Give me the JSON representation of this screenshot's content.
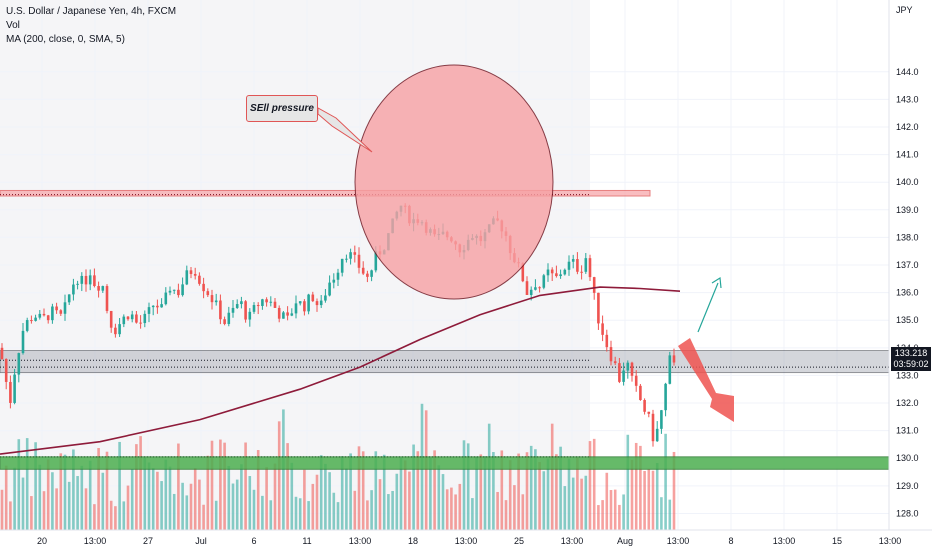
{
  "legend": {
    "symbol": "U.S. Dollar / Japanese Yen, 4h, FXCM",
    "vol": "Vol",
    "ma": "MA (200, close, 0, SMA, 5)"
  },
  "price_axis": {
    "currency": "JPY",
    "last_price": "133.218",
    "countdown": "03:59:02"
  },
  "annotations": {
    "callout": "SEll pressure"
  },
  "colors": {
    "up": "#26a69a",
    "down": "#ef5350",
    "ma": "#8e1b3a",
    "resistance": "#f7a8ab",
    "support": "#4caf50",
    "range": "#b2b5be",
    "circle": "#f7a1a4"
  },
  "chart_data": {
    "type": "candlestick",
    "symbol": "U.S. Dollar / Japanese Yen",
    "timeframe": "4h",
    "source": "FXCM",
    "ylim": [
      127.4,
      146.6
    ],
    "y_ticks": [
      128.0,
      129.0,
      130.0,
      131.0,
      132.0,
      133.0,
      134.0,
      135.0,
      136.0,
      137.0,
      138.0,
      139.0,
      140.0,
      141.0,
      142.0,
      143.0,
      144.0
    ],
    "x_ticks": [
      "20",
      "13:00",
      "27",
      "Jul",
      "6",
      "11",
      "13:00",
      "18",
      "13:00",
      "25",
      "13:00",
      "Aug",
      "13:00",
      "8",
      "13:00",
      "15",
      "13:00"
    ],
    "close_path": [
      [
        0,
        134.0
      ],
      [
        10,
        132.0
      ],
      [
        16,
        133.5
      ],
      [
        24,
        134.8
      ],
      [
        34,
        135.2
      ],
      [
        42,
        135.0
      ],
      [
        52,
        135.3
      ],
      [
        62,
        135.1
      ],
      [
        70,
        136.0
      ],
      [
        76,
        136.6
      ],
      [
        84,
        136.3
      ],
      [
        90,
        136.8
      ],
      [
        96,
        136.2
      ],
      [
        102,
        136.4
      ],
      [
        108,
        135.2
      ],
      [
        114,
        134.6
      ],
      [
        122,
        135.0
      ],
      [
        130,
        135.3
      ],
      [
        138,
        134.8
      ],
      [
        146,
        135.1
      ],
      [
        154,
        135.6
      ],
      [
        162,
        135.4
      ],
      [
        170,
        136.2
      ],
      [
        178,
        136.0
      ],
      [
        186,
        136.6
      ],
      [
        194,
        136.9
      ],
      [
        202,
        136.3
      ],
      [
        210,
        135.9
      ],
      [
        218,
        135.4
      ],
      [
        224,
        134.9
      ],
      [
        232,
        135.3
      ],
      [
        240,
        135.7
      ],
      [
        248,
        135.0
      ],
      [
        256,
        135.5
      ],
      [
        264,
        135.8
      ],
      [
        272,
        135.6
      ],
      [
        280,
        135.2
      ],
      [
        288,
        135.0
      ],
      [
        296,
        135.7
      ],
      [
        304,
        135.5
      ],
      [
        312,
        135.9
      ],
      [
        320,
        135.4
      ],
      [
        328,
        136.3
      ],
      [
        336,
        136.7
      ],
      [
        344,
        137.5
      ],
      [
        352,
        137.3
      ],
      [
        360,
        136.9
      ],
      [
        368,
        136.5
      ],
      [
        376,
        137.3
      ],
      [
        384,
        137.7
      ],
      [
        392,
        138.4
      ],
      [
        400,
        139.2
      ],
      [
        406,
        138.9
      ],
      [
        412,
        138.6
      ],
      [
        420,
        138.7
      ],
      [
        428,
        138.3
      ],
      [
        436,
        137.9
      ],
      [
        444,
        138.1
      ],
      [
        452,
        138.0
      ],
      [
        460,
        137.6
      ],
      [
        466,
        137.8
      ],
      [
        472,
        138.1
      ],
      [
        480,
        137.9
      ],
      [
        488,
        138.2
      ],
      [
        496,
        138.6
      ],
      [
        504,
        138.3
      ],
      [
        510,
        137.6
      ],
      [
        516,
        137.1
      ],
      [
        522,
        136.6
      ],
      [
        528,
        135.9
      ],
      [
        534,
        136.4
      ],
      [
        540,
        136.2
      ],
      [
        548,
        136.7
      ],
      [
        556,
        136.5
      ],
      [
        564,
        136.9
      ],
      [
        572,
        137.1
      ],
      [
        580,
        136.8
      ],
      [
        586,
        137.3
      ],
      [
        592,
        136.2
      ],
      [
        598,
        135.1
      ],
      [
        604,
        134.4
      ],
      [
        610,
        133.8
      ],
      [
        616,
        133.3
      ],
      [
        620,
        132.8
      ],
      [
        626,
        133.6
      ],
      [
        632,
        132.8
      ],
      [
        638,
        132.3
      ],
      [
        644,
        131.8
      ],
      [
        650,
        131.3
      ],
      [
        654,
        130.6
      ],
      [
        658,
        131.1
      ],
      [
        662,
        131.8
      ],
      [
        666,
        132.7
      ],
      [
        670,
        133.6
      ],
      [
        674,
        133.3
      ],
      [
        678,
        133.2
      ]
    ],
    "ma_path": [
      [
        0,
        130.15
      ],
      [
        100,
        130.6
      ],
      [
        200,
        131.4
      ],
      [
        300,
        132.5
      ],
      [
        360,
        133.3
      ],
      [
        420,
        134.3
      ],
      [
        480,
        135.2
      ],
      [
        540,
        135.9
      ],
      [
        600,
        136.2
      ],
      [
        640,
        136.15
      ],
      [
        680,
        136.05
      ]
    ],
    "zones": {
      "resistance": [
        139.5,
        139.7
      ],
      "range": [
        133.1,
        133.9
      ],
      "support": [
        129.6,
        130.05
      ]
    },
    "volume_ylim": [
      0,
      3.1
    ]
  }
}
